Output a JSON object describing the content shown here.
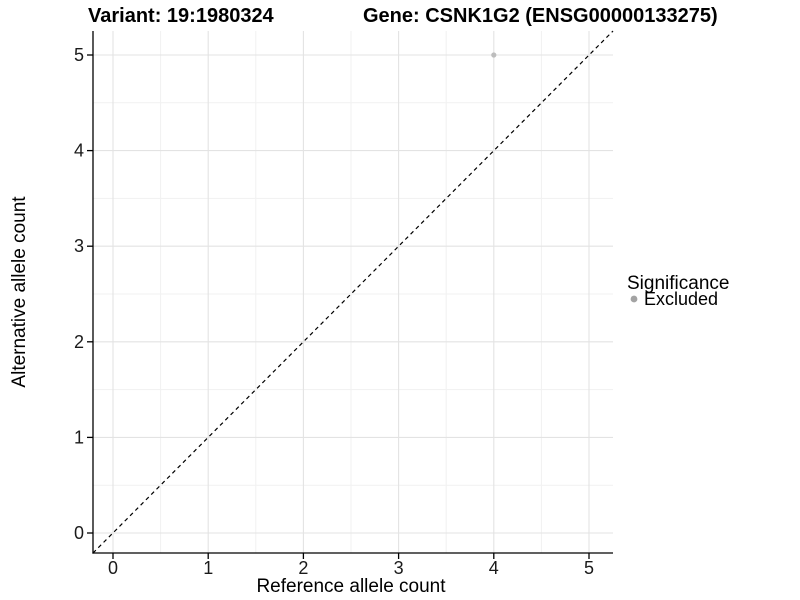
{
  "chart_data": {
    "type": "scatter",
    "title_left": "Variant: 19:1980324",
    "title_right": "Gene: CSNK1G2 (ENSG00000133275)",
    "xlabel": "Reference allele count",
    "ylabel": "Alternative allele count",
    "x_ticks": [
      "0",
      "1",
      "2",
      "3",
      "4",
      "5"
    ],
    "y_ticks": [
      "0",
      "1",
      "2",
      "3",
      "4",
      "5"
    ],
    "xlim": [
      -0.21,
      5.25
    ],
    "ylim": [
      -0.21,
      5.25
    ],
    "grid": "major and minor, light grey on white panel",
    "points": [
      {
        "x": 4,
        "y": 5,
        "series": "Excluded"
      }
    ],
    "reference_line": {
      "kind": "identity y = x",
      "style": "dashed",
      "color": "#000000"
    },
    "legend": {
      "title": "Significance",
      "position": "right",
      "items": [
        {
          "label": "Excluded",
          "color": "#a3a3a3"
        }
      ]
    },
    "colors": {
      "point": "#bdbdbd",
      "legend_dot": "#a3a3a3",
      "grid_major": "#e3e3e3",
      "grid_minor": "#f1f1f1",
      "axis_line": "#000000",
      "tick_mark": "#000000",
      "background": "#ffffff"
    }
  }
}
